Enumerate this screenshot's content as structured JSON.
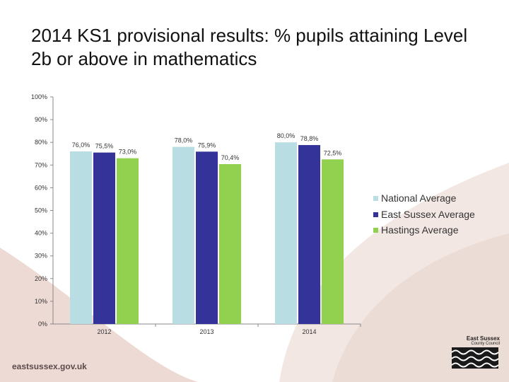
{
  "title": "2014 KS1 provisional results: % pupils attaining Level 2b or above in mathematics",
  "footer": {
    "url": "eastsussex.gov.uk"
  },
  "logo": {
    "line1": "East Sussex",
    "line2": "County Council"
  },
  "colors": {
    "national": "#b8dde3",
    "east_sussex": "#333399",
    "hastings": "#92d050",
    "background_swirl": "#f0e0dc"
  },
  "chart_data": {
    "type": "bar",
    "categories": [
      "2012",
      "2013",
      "2014"
    ],
    "series": [
      {
        "name": "National Average",
        "values": [
          76.0,
          78.0,
          80.0
        ],
        "labels": [
          "76,0%",
          "78,0%",
          "80,0%"
        ]
      },
      {
        "name": "East Sussex Average",
        "values": [
          75.5,
          75.9,
          78.8
        ],
        "labels": [
          "75,5%",
          "75,9%",
          "78,8%"
        ]
      },
      {
        "name": "Hastings Average",
        "values": [
          73.0,
          70.4,
          72.5
        ],
        "labels": [
          "73,0%",
          "70,4%",
          "72,5%"
        ]
      }
    ],
    "yticks": [
      "0%",
      "10%",
      "20%",
      "30%",
      "40%",
      "50%",
      "60%",
      "70%",
      "80%",
      "90%",
      "100%"
    ],
    "ylim": [
      0,
      100
    ],
    "legend_position": "right",
    "grid": false
  }
}
